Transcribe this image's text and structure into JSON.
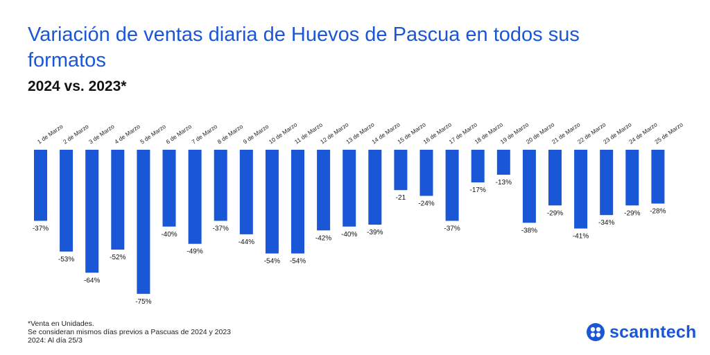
{
  "chart_data": {
    "type": "bar",
    "title": "Variación de ventas diaria de Huevos de Pascua en todos sus formatos",
    "subtitle": "2024 vs. 2023*",
    "categories": [
      "1 de Marzo",
      "2 de Marzo",
      "3 de Marzo",
      "4 de Marzo",
      "5 de Marzo",
      "6 de Marzo",
      "7 de Marzo",
      "8 de Marzo",
      "9 de Marzo",
      "10 de Marzo",
      "11 de Marzo",
      "12 de Marzo",
      "13 de Marzo",
      "14 de Marzo",
      "15 de Marzo",
      "16 de Marzo",
      "17 de Marzo",
      "18 de Marzo",
      "19 de Marzo",
      "20 de Marzo",
      "21 de Marzo",
      "22 de Marzo",
      "23 de Marzo",
      "24 de Marzo",
      "25 de Marzo"
    ],
    "values": [
      -37,
      -53,
      -64,
      -52,
      -75,
      -40,
      -49,
      -37,
      -44,
      -54,
      -54,
      -42,
      -40,
      -39,
      -21,
      -24,
      -37,
      -17,
      -13,
      -38,
      -29,
      -41,
      -34,
      -29,
      -28
    ],
    "data_labels": [
      "-37%",
      "-53%",
      "-64%",
      "-52%",
      "-75%",
      "-40%",
      "-49%",
      "-37%",
      "-44%",
      "-54%",
      "-54%",
      "-42%",
      "-40%",
      "-39%",
      "-21",
      "-24%",
      "-37%",
      "-17%",
      "-13%",
      "-38%",
      "-29%",
      "-41%",
      "-34%",
      "-29%",
      "-28%"
    ],
    "bar_color": "#1a57d6",
    "grid": false,
    "xlabel": "",
    "ylabel": "",
    "ylim": [
      -80,
      0
    ]
  },
  "footnotes": [
    "*Venta en Unidades.",
    "Se consideran mismos días previos a Pascuas de 2024 y 2023",
    "2024: Al día 25/3"
  ],
  "brand": {
    "name": "scanntech",
    "icon": "scanntech-logo-icon",
    "color": "#1a57d6"
  }
}
